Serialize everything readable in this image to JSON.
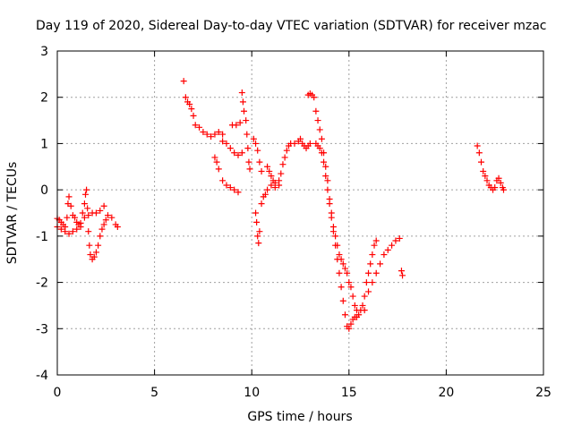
{
  "chart_data": {
    "type": "scatter",
    "title": "Day 119 of 2020, Sidereal Day-to-day VTEC variation (SDTVAR) for receiver mzac",
    "xlabel": "GPS time / hours",
    "ylabel": "SDTVAR / TECUs",
    "xlim": [
      0,
      25
    ],
    "ylim": [
      -4,
      3
    ],
    "xticks": [
      "0",
      "5",
      "10",
      "15",
      "20",
      "25"
    ],
    "yticks": [
      "-4",
      "-3",
      "-2",
      "-1",
      "0",
      "1",
      "2",
      "3"
    ],
    "grid": true,
    "marker": "plus",
    "color": "#ff0000",
    "series": [
      {
        "points": [
          [
            0.0,
            -0.62
          ],
          [
            0.1,
            -0.65
          ],
          [
            0.2,
            -0.7
          ],
          [
            0.3,
            -0.75
          ],
          [
            0.4,
            -0.8
          ],
          [
            0.5,
            -0.6
          ],
          [
            0.55,
            -0.3
          ],
          [
            0.6,
            -0.15
          ],
          [
            0.7,
            -0.35
          ],
          [
            0.8,
            -0.55
          ],
          [
            0.9,
            -0.6
          ],
          [
            1.0,
            -0.7
          ],
          [
            1.1,
            -0.75
          ],
          [
            1.2,
            -0.72
          ],
          [
            1.3,
            -0.5
          ],
          [
            1.4,
            -0.3
          ],
          [
            1.45,
            -0.1
          ],
          [
            1.5,
            0.0
          ],
          [
            1.55,
            -0.4
          ],
          [
            1.6,
            -0.9
          ],
          [
            1.65,
            -1.2
          ],
          [
            1.7,
            -1.4
          ],
          [
            1.8,
            -1.5
          ],
          [
            1.9,
            -1.45
          ],
          [
            2.0,
            -1.35
          ],
          [
            2.1,
            -1.2
          ],
          [
            2.2,
            -1.0
          ],
          [
            2.3,
            -0.85
          ],
          [
            2.4,
            -0.75
          ],
          [
            2.5,
            -0.65
          ],
          [
            2.6,
            -0.55
          ],
          [
            2.8,
            -0.6
          ],
          [
            3.0,
            -0.75
          ],
          [
            3.1,
            -0.8
          ],
          [
            0.0,
            -0.8
          ],
          [
            0.2,
            -0.85
          ],
          [
            0.4,
            -0.9
          ],
          [
            0.6,
            -0.95
          ],
          [
            0.8,
            -0.9
          ],
          [
            1.0,
            -0.85
          ],
          [
            1.2,
            -0.8
          ],
          [
            1.4,
            -0.6
          ],
          [
            1.6,
            -0.55
          ],
          [
            1.8,
            -0.5
          ],
          [
            2.0,
            -0.5
          ],
          [
            2.2,
            -0.45
          ],
          [
            2.4,
            -0.35
          ],
          [
            6.5,
            2.35
          ],
          [
            6.6,
            2.0
          ],
          [
            6.7,
            1.9
          ],
          [
            6.8,
            1.85
          ],
          [
            6.9,
            1.75
          ],
          [
            7.0,
            1.6
          ],
          [
            7.1,
            1.4
          ],
          [
            7.3,
            1.35
          ],
          [
            7.5,
            1.25
          ],
          [
            7.7,
            1.2
          ],
          [
            7.9,
            1.15
          ],
          [
            8.1,
            1.2
          ],
          [
            8.3,
            1.25
          ],
          [
            8.5,
            1.2
          ],
          [
            8.1,
            0.7
          ],
          [
            8.2,
            0.6
          ],
          [
            8.3,
            0.45
          ],
          [
            8.5,
            0.2
          ],
          [
            8.7,
            0.1
          ],
          [
            8.9,
            0.05
          ],
          [
            9.1,
            0.0
          ],
          [
            9.3,
            -0.05
          ],
          [
            8.5,
            1.05
          ],
          [
            8.7,
            1.0
          ],
          [
            8.9,
            0.9
          ],
          [
            9.1,
            0.8
          ],
          [
            9.3,
            0.75
          ],
          [
            9.5,
            0.8
          ],
          [
            9.0,
            1.4
          ],
          [
            9.2,
            1.4
          ],
          [
            9.4,
            1.45
          ],
          [
            9.5,
            2.1
          ],
          [
            9.55,
            1.9
          ],
          [
            9.6,
            1.7
          ],
          [
            9.7,
            1.5
          ],
          [
            9.75,
            1.2
          ],
          [
            9.8,
            0.9
          ],
          [
            9.85,
            0.6
          ],
          [
            9.9,
            0.45
          ],
          [
            10.1,
            1.1
          ],
          [
            10.2,
            1.0
          ],
          [
            10.3,
            0.85
          ],
          [
            10.4,
            0.6
          ],
          [
            10.5,
            0.4
          ],
          [
            10.2,
            -0.5
          ],
          [
            10.25,
            -0.7
          ],
          [
            10.3,
            -1.0
          ],
          [
            10.35,
            -1.15
          ],
          [
            10.4,
            -0.9
          ],
          [
            10.5,
            -0.3
          ],
          [
            10.6,
            -0.15
          ],
          [
            10.7,
            -0.1
          ],
          [
            10.8,
            0.0
          ],
          [
            10.8,
            0.5
          ],
          [
            10.9,
            0.4
          ],
          [
            11.0,
            0.3
          ],
          [
            11.1,
            0.2
          ],
          [
            11.2,
            0.15
          ],
          [
            11.4,
            0.2
          ],
          [
            11.5,
            0.35
          ],
          [
            11.6,
            0.55
          ],
          [
            11.7,
            0.7
          ],
          [
            11.8,
            0.85
          ],
          [
            11.9,
            0.95
          ],
          [
            12.0,
            1.0
          ],
          [
            11.0,
            0.1
          ],
          [
            11.2,
            0.05
          ],
          [
            11.4,
            0.1
          ],
          [
            12.2,
            1.0
          ],
          [
            12.4,
            1.05
          ],
          [
            12.5,
            1.1
          ],
          [
            12.6,
            1.0
          ],
          [
            12.7,
            0.95
          ],
          [
            12.8,
            0.9
          ],
          [
            12.9,
            0.95
          ],
          [
            13.0,
            1.0
          ],
          [
            12.9,
            2.05
          ],
          [
            13.0,
            2.08
          ],
          [
            13.1,
            2.05
          ],
          [
            13.2,
            2.0
          ],
          [
            13.3,
            1.7
          ],
          [
            13.4,
            1.5
          ],
          [
            13.5,
            1.3
          ],
          [
            13.6,
            1.1
          ],
          [
            13.7,
            0.8
          ],
          [
            13.8,
            0.5
          ],
          [
            13.9,
            0.2
          ],
          [
            14.0,
            -0.2
          ],
          [
            14.1,
            -0.5
          ],
          [
            14.2,
            -0.9
          ],
          [
            14.3,
            -1.2
          ],
          [
            14.4,
            -1.5
          ],
          [
            14.5,
            -1.8
          ],
          [
            14.6,
            -2.1
          ],
          [
            14.7,
            -2.4
          ],
          [
            14.8,
            -2.7
          ],
          [
            14.9,
            -2.95
          ],
          [
            15.0,
            -3.0
          ],
          [
            15.1,
            -2.9
          ],
          [
            15.2,
            -2.8
          ],
          [
            15.3,
            -2.75
          ],
          [
            15.4,
            -2.75
          ],
          [
            13.3,
            1.0
          ],
          [
            13.4,
            0.95
          ],
          [
            13.5,
            0.9
          ],
          [
            13.6,
            0.8
          ],
          [
            13.7,
            0.6
          ],
          [
            13.8,
            0.3
          ],
          [
            13.9,
            0.0
          ],
          [
            14.0,
            -0.3
          ],
          [
            14.1,
            -0.6
          ],
          [
            14.2,
            -0.8
          ],
          [
            14.3,
            -1.0
          ],
          [
            14.4,
            -1.2
          ],
          [
            14.5,
            -1.4
          ],
          [
            14.6,
            -1.5
          ],
          [
            14.7,
            -1.6
          ],
          [
            14.8,
            -1.7
          ],
          [
            14.9,
            -1.8
          ],
          [
            15.0,
            -2.0
          ],
          [
            15.1,
            -2.1
          ],
          [
            15.2,
            -2.3
          ],
          [
            15.3,
            -2.5
          ],
          [
            15.4,
            -2.6
          ],
          [
            15.5,
            -2.7
          ],
          [
            15.6,
            -2.6
          ],
          [
            15.7,
            -2.5
          ],
          [
            15.8,
            -2.3
          ],
          [
            15.9,
            -2.0
          ],
          [
            16.0,
            -1.8
          ],
          [
            16.1,
            -1.6
          ],
          [
            16.2,
            -1.4
          ],
          [
            16.3,
            -1.2
          ],
          [
            16.4,
            -1.1
          ],
          [
            15.8,
            -2.6
          ],
          [
            16.0,
            -2.2
          ],
          [
            16.2,
            -2.0
          ],
          [
            16.4,
            -1.8
          ],
          [
            16.6,
            -1.6
          ],
          [
            16.8,
            -1.4
          ],
          [
            17.0,
            -1.3
          ],
          [
            17.2,
            -1.2
          ],
          [
            17.4,
            -1.1
          ],
          [
            17.6,
            -1.05
          ],
          [
            17.7,
            -1.75
          ],
          [
            17.75,
            -1.85
          ],
          [
            21.6,
            0.95
          ],
          [
            21.7,
            0.8
          ],
          [
            21.8,
            0.6
          ],
          [
            21.9,
            0.4
          ],
          [
            22.0,
            0.3
          ],
          [
            22.1,
            0.2
          ],
          [
            22.2,
            0.1
          ],
          [
            22.3,
            0.05
          ],
          [
            22.4,
            0.0
          ],
          [
            22.5,
            0.05
          ],
          [
            22.6,
            0.2
          ],
          [
            22.7,
            0.25
          ],
          [
            22.8,
            0.15
          ],
          [
            22.9,
            0.05
          ],
          [
            22.95,
            0.0
          ]
        ]
      }
    ]
  }
}
